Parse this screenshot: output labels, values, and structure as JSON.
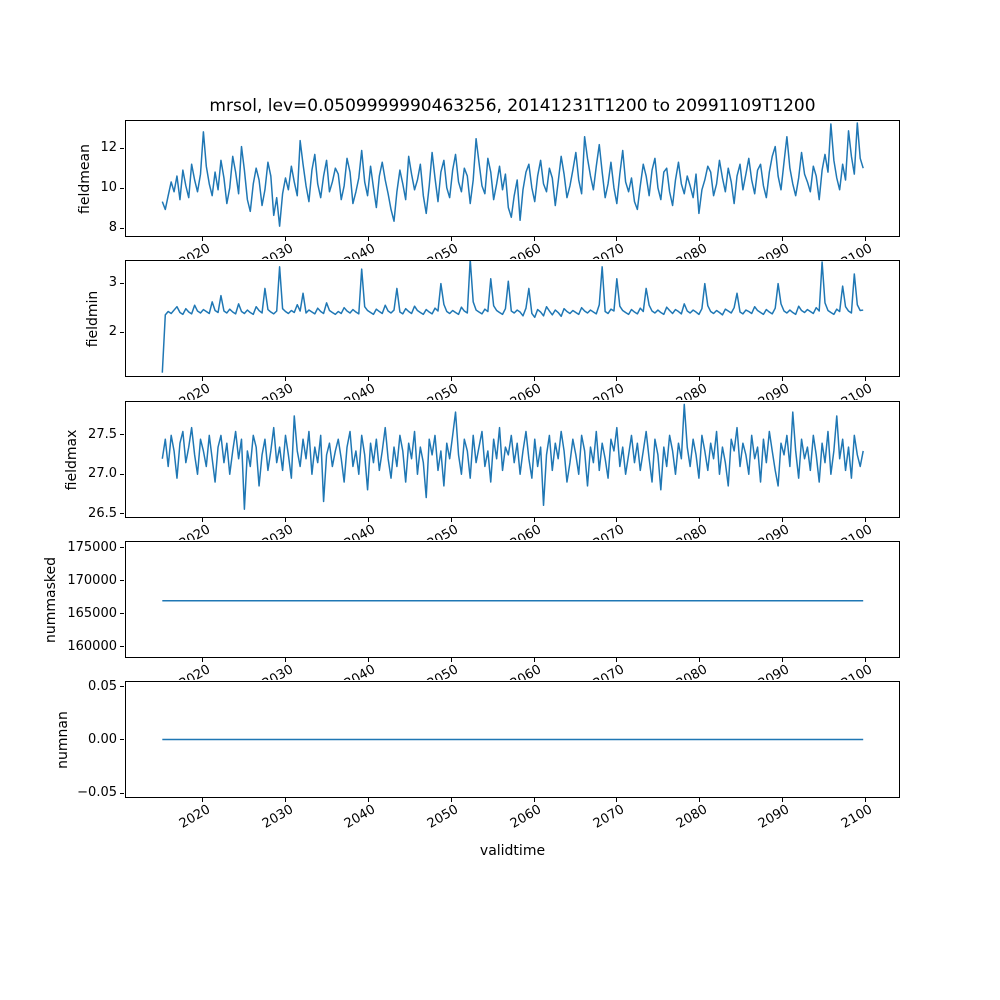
{
  "title": "mrsol, lev=0.0509999990463256, 20141231T1200 to 20991109T1200",
  "xlabel": "validtime",
  "line_color": "#1f77b4",
  "xlim": [
    2010.6,
    2104.2
  ],
  "x_range": {
    "start": 2015.0,
    "end": 2099.86
  },
  "xticks": {
    "values": [
      2020,
      2030,
      2040,
      2050,
      2060,
      2070,
      2080,
      2090,
      2100
    ],
    "labels": [
      "2020",
      "2030",
      "2040",
      "2050",
      "2060",
      "2070",
      "2080",
      "2090",
      "2100"
    ]
  },
  "chart_data": [
    {
      "type": "line",
      "ylabel": "fieldmean",
      "ylim": [
        7.55,
        13.4
      ],
      "yticks": [
        8,
        10,
        12
      ],
      "ytick_labels": [
        "8",
        "10",
        "12"
      ],
      "values": [
        9.3,
        8.9,
        9.6,
        10.3,
        9.8,
        10.6,
        9.4,
        10.9,
        10.1,
        9.5,
        11.2,
        10.4,
        9.8,
        10.7,
        12.85,
        11.1,
        10.2,
        9.6,
        10.8,
        9.9,
        11.4,
        10.5,
        9.2,
        10.0,
        11.6,
        10.8,
        9.7,
        12.1,
        10.9,
        9.4,
        8.8,
        10.2,
        11.0,
        10.4,
        9.1,
        9.9,
        11.3,
        10.6,
        8.6,
        9.5,
        8.05,
        9.7,
        10.5,
        9.9,
        11.1,
        10.3,
        9.6,
        12.4,
        11.2,
        10.1,
        9.3,
        10.9,
        11.7,
        10.2,
        9.5,
        10.6,
        11.4,
        9.8,
        10.3,
        11.0,
        10.7,
        9.4,
        10.1,
        11.5,
        10.8,
        9.2,
        9.8,
        10.5,
        11.9,
        10.3,
        9.6,
        11.1,
        10.0,
        9.0,
        10.6,
        11.3,
        10.4,
        9.7,
        8.9,
        8.3,
        9.8,
        10.9,
        10.2,
        9.4,
        11.6,
        10.7,
        9.9,
        10.4,
        11.2,
        9.6,
        8.7,
        10.1,
        11.8,
        10.5,
        9.3,
        10.8,
        11.4,
        10.0,
        9.5,
        10.9,
        11.7,
        10.3,
        9.8,
        11.0,
        10.6,
        9.2,
        10.4,
        12.5,
        11.3,
        10.1,
        9.7,
        11.5,
        10.8,
        9.4,
        10.2,
        11.1,
        9.9,
        10.7,
        9.0,
        8.5,
        9.6,
        10.4,
        8.35,
        9.9,
        10.8,
        11.2,
        10.0,
        9.3,
        10.6,
        11.4,
        10.2,
        9.8,
        11.0,
        10.5,
        9.1,
        10.3,
        11.6,
        10.7,
        9.5,
        10.1,
        10.9,
        11.8,
        10.4,
        9.7,
        12.6,
        11.5,
        10.6,
        9.9,
        11.1,
        12.2,
        10.8,
        9.5,
        10.2,
        11.3,
        10.0,
        9.2,
        10.7,
        11.9,
        10.3,
        9.8,
        10.5,
        9.3,
        8.9,
        10.1,
        11.2,
        10.6,
        9.6,
        10.9,
        11.5,
        10.0,
        9.4,
        10.8,
        11.0,
        9.8,
        9.1,
        10.4,
        11.3,
        10.2,
        9.7,
        10.6,
        10.1,
        9.5,
        10.7,
        8.7,
        9.9,
        10.4,
        11.1,
        10.8,
        9.6,
        10.2,
        11.4,
        10.5,
        9.8,
        11.0,
        10.3,
        9.2,
        10.6,
        11.2,
        9.9,
        10.7,
        11.5,
        10.4,
        9.7,
        10.9,
        11.2,
        10.1,
        9.5,
        10.8,
        11.6,
        12.1,
        10.6,
        9.9,
        11.3,
        12.6,
        11.0,
        10.2,
        9.6,
        10.5,
        11.8,
        10.7,
        10.3,
        9.8,
        11.1,
        10.6,
        9.4,
        10.9,
        11.7,
        10.8,
        13.25,
        11.4,
        10.5,
        9.9,
        11.2,
        10.4,
        12.9,
        11.6,
        10.7,
        13.3,
        11.5,
        11.0
      ]
    },
    {
      "type": "line",
      "ylabel": "fieldmin",
      "ylim": [
        1.08,
        3.47
      ],
      "yticks": [
        2,
        3
      ],
      "ytick_labels": [
        "2",
        "3"
      ],
      "values": [
        1.15,
        2.35,
        2.42,
        2.38,
        2.45,
        2.52,
        2.4,
        2.36,
        2.48,
        2.41,
        2.37,
        2.55,
        2.43,
        2.39,
        2.46,
        2.42,
        2.38,
        2.62,
        2.44,
        2.4,
        2.75,
        2.43,
        2.39,
        2.47,
        2.41,
        2.37,
        2.58,
        2.42,
        2.38,
        2.45,
        2.4,
        2.36,
        2.52,
        2.44,
        2.39,
        2.9,
        2.46,
        2.41,
        2.37,
        2.43,
        3.35,
        2.48,
        2.42,
        2.38,
        2.44,
        2.4,
        2.56,
        2.43,
        2.8,
        2.39,
        2.45,
        2.41,
        2.37,
        2.49,
        2.42,
        2.38,
        2.6,
        2.44,
        2.4,
        2.36,
        2.42,
        2.38,
        2.5,
        2.43,
        2.39,
        2.46,
        2.41,
        2.37,
        3.3,
        2.52,
        2.44,
        2.4,
        2.36,
        2.47,
        2.42,
        2.38,
        2.55,
        2.43,
        2.39,
        2.45,
        2.9,
        2.41,
        2.37,
        2.48,
        2.42,
        2.38,
        2.53,
        2.44,
        2.4,
        2.36,
        2.46,
        2.41,
        2.37,
        2.49,
        2.43,
        3.0,
        2.57,
        2.42,
        2.38,
        2.44,
        2.4,
        2.36,
        2.51,
        2.43,
        2.39,
        3.5,
        2.62,
        2.45,
        2.41,
        2.37,
        2.47,
        2.42,
        3.1,
        2.54,
        2.44,
        2.4,
        2.36,
        2.48,
        3.05,
        2.43,
        2.39,
        2.45,
        2.41,
        2.33,
        2.49,
        2.9,
        2.38,
        2.3,
        2.46,
        2.41,
        2.33,
        2.52,
        2.43,
        2.35,
        2.45,
        2.4,
        2.32,
        2.48,
        2.42,
        2.38,
        2.44,
        2.4,
        2.36,
        2.5,
        2.43,
        2.39,
        2.45,
        2.41,
        2.37,
        2.56,
        3.35,
        2.42,
        2.38,
        2.47,
        2.43,
        3.1,
        2.53,
        2.44,
        2.4,
        2.36,
        2.46,
        2.41,
        2.37,
        2.49,
        2.42,
        2.9,
        2.55,
        2.43,
        2.39,
        2.45,
        2.4,
        2.36,
        2.51,
        2.44,
        2.38,
        2.46,
        2.42,
        2.37,
        2.58,
        2.43,
        2.39,
        2.45,
        2.41,
        2.36,
        2.48,
        3.0,
        2.54,
        2.42,
        2.38,
        2.44,
        2.4,
        2.35,
        2.47,
        2.43,
        2.39,
        2.5,
        2.8,
        2.41,
        2.37,
        2.45,
        2.42,
        2.38,
        2.52,
        2.44,
        2.4,
        2.36,
        2.46,
        2.41,
        2.37,
        2.49,
        3.0,
        2.58,
        2.43,
        2.39,
        2.45,
        2.4,
        2.36,
        2.53,
        2.44,
        2.4,
        2.46,
        2.42,
        2.38,
        2.5,
        2.43,
        3.45,
        2.6,
        2.44,
        2.4,
        2.36,
        2.47,
        2.42,
        2.95,
        2.52,
        2.43,
        2.39,
        3.2,
        2.56,
        2.44,
        2.45
      ]
    },
    {
      "type": "line",
      "ylabel": "fieldmax",
      "ylim": [
        26.45,
        27.93
      ],
      "yticks": [
        26.5,
        27.0,
        27.5
      ],
      "ytick_labels": [
        "26.5",
        "27.0",
        "27.5"
      ],
      "values": [
        27.2,
        27.45,
        27.1,
        27.5,
        27.3,
        26.95,
        27.4,
        27.55,
        27.15,
        27.35,
        27.6,
        27.25,
        27.0,
        27.45,
        27.3,
        27.1,
        27.5,
        27.2,
        26.9,
        27.35,
        27.5,
        27.15,
        27.4,
        27.0,
        27.3,
        27.55,
        27.2,
        27.45,
        26.55,
        27.3,
        27.1,
        27.5,
        27.35,
        26.85,
        27.25,
        27.45,
        27.05,
        27.3,
        27.6,
        27.15,
        27.35,
        27.05,
        27.5,
        27.25,
        26.95,
        27.75,
        27.3,
        27.1,
        27.45,
        27.2,
        27.55,
        27.0,
        27.35,
        27.15,
        27.5,
        26.65,
        27.25,
        27.4,
        27.1,
        27.3,
        27.45,
        27.2,
        26.9,
        27.35,
        27.55,
        27.1,
        27.3,
        27.0,
        27.5,
        27.25,
        26.8,
        27.4,
        27.15,
        27.45,
        27.05,
        27.3,
        27.6,
        27.2,
        26.95,
        27.35,
        27.1,
        27.5,
        27.3,
        26.9,
        27.4,
        27.2,
        27.55,
        27.0,
        27.35,
        27.15,
        26.7,
        27.45,
        27.25,
        27.5,
        27.05,
        27.3,
        26.85,
        27.4,
        27.2,
        27.5,
        27.8,
        27.25,
        27.0,
        27.45,
        27.3,
        26.95,
        27.5,
        27.15,
        27.35,
        27.55,
        27.1,
        27.3,
        26.9,
        27.45,
        27.2,
        27.6,
        27.05,
        27.35,
        27.25,
        27.5,
        27.15,
        27.4,
        27.0,
        27.3,
        27.55,
        27.2,
        26.95,
        27.45,
        27.1,
        27.35,
        26.6,
        27.25,
        27.5,
        27.05,
        27.4,
        27.2,
        27.55,
        27.3,
        26.9,
        27.15,
        27.45,
        27.25,
        27.0,
        27.5,
        27.3,
        26.85,
        27.35,
        27.15,
        27.55,
        27.05,
        27.4,
        27.2,
        26.95,
        27.45,
        27.3,
        27.6,
        27.1,
        27.35,
        27.0,
        27.25,
        27.5,
        27.15,
        27.4,
        27.05,
        27.3,
        27.55,
        27.2,
        26.9,
        27.45,
        27.25,
        26.8,
        27.35,
        27.1,
        27.5,
        27.3,
        27.0,
        27.4,
        27.2,
        27.9,
        27.35,
        27.1,
        27.45,
        27.25,
        26.95,
        27.5,
        27.3,
        27.05,
        27.4,
        27.2,
        27.55,
        27.0,
        27.35,
        27.15,
        26.85,
        27.45,
        27.3,
        27.6,
        27.1,
        27.4,
        27.25,
        27.0,
        27.5,
        27.2,
        27.35,
        26.9,
        27.45,
        27.15,
        27.55,
        27.3,
        27.05,
        26.85,
        27.4,
        27.25,
        27.5,
        27.1,
        27.8,
        27.3,
        26.95,
        27.45,
        27.2,
        27.35,
        27.05,
        27.5,
        27.25,
        26.9,
        27.4,
        27.15,
        27.55,
        27.0,
        27.3,
        27.75,
        27.2,
        27.45,
        27.05,
        27.35,
        26.95,
        27.5,
        27.25,
        27.1,
        27.3
      ]
    },
    {
      "type": "line",
      "ylabel": "nummasked",
      "ylim": [
        158330,
        176060
      ],
      "yticks": [
        160000,
        165000,
        170000,
        175000
      ],
      "ytick_labels": [
        "160000",
        "165000",
        "170000",
        "175000"
      ],
      "values": [
        167000,
        167000
      ]
    },
    {
      "type": "line",
      "ylabel": "numnan",
      "ylim": [
        -0.055,
        0.055
      ],
      "yticks": [
        -0.05,
        0,
        0.05
      ],
      "ytick_labels": [
        "−0.05",
        "0.00",
        "0.05"
      ],
      "values": [
        0,
        0
      ]
    }
  ]
}
